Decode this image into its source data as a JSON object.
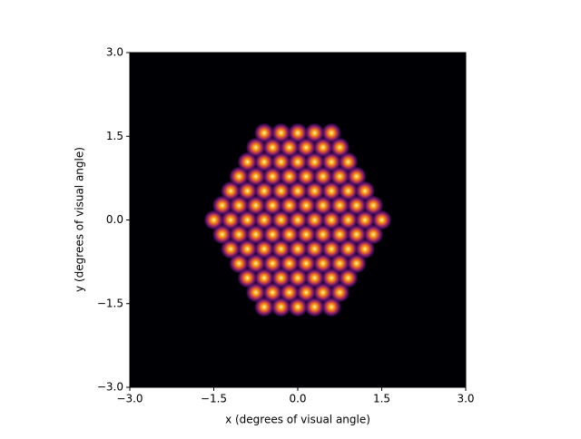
{
  "chart_data": {
    "type": "scatter",
    "xlabel": "x (degrees of visual angle)",
    "ylabel": "y (degrees of visual angle)",
    "xlim": [
      -3,
      3
    ],
    "ylim": [
      -3,
      3
    ],
    "xticks": [
      {
        "value": -3,
        "label": "−3.0"
      },
      {
        "value": -1.5,
        "label": "−1.5"
      },
      {
        "value": 0,
        "label": "0.0"
      },
      {
        "value": 1.5,
        "label": "1.5"
      },
      {
        "value": 3,
        "label": "3.0"
      }
    ],
    "yticks": [
      {
        "value": -3,
        "label": "−3.0"
      },
      {
        "value": -1.5,
        "label": "−1.5"
      },
      {
        "value": 0,
        "label": "0.0"
      },
      {
        "value": 1.5,
        "label": "1.5"
      },
      {
        "value": 3,
        "label": "3.0"
      }
    ],
    "background": "#000004",
    "color": "#fcffa4",
    "series": [
      {
        "x": [
          -0.6,
          -0.3,
          0,
          0.3,
          0.6,
          -0.75,
          -0.45,
          -0.15,
          0.15,
          0.45,
          0.75,
          -0.9,
          -0.6,
          -0.3,
          0,
          0.3,
          0.6,
          0.9,
          -1.05,
          -0.75,
          -0.45,
          -0.15,
          0.15,
          0.45,
          0.75,
          1.05,
          -1.2,
          -0.9,
          -0.6,
          -0.3,
          0,
          0.3,
          0.6,
          0.9,
          1.2,
          -1.35,
          -1.05,
          -0.75,
          -0.45,
          -0.15,
          0.15,
          0.45,
          0.75,
          1.05,
          1.35,
          -1.5,
          -1.2,
          -0.9,
          -0.6,
          -0.3,
          0,
          0.3,
          0.6,
          0.9,
          1.2,
          1.5,
          -1.35,
          -1.05,
          -0.75,
          -0.45,
          -0.15,
          0.15,
          0.45,
          0.75,
          1.05,
          1.35,
          -1.2,
          -0.9,
          -0.6,
          -0.3,
          0,
          0.3,
          0.6,
          0.9,
          1.2,
          -1.05,
          -0.75,
          -0.45,
          -0.15,
          0.15,
          0.45,
          0.75,
          1.05,
          -0.9,
          -0.6,
          -0.3,
          0,
          0.3,
          0.6,
          0.9,
          -0.75,
          -0.45,
          -0.15,
          0.15,
          0.45,
          0.75,
          -0.6,
          -0.3,
          0,
          0.3,
          0.6
        ],
        "y": [
          1.56,
          1.56,
          1.56,
          1.56,
          1.56,
          1.3,
          1.3,
          1.3,
          1.3,
          1.3,
          1.3,
          1.04,
          1.04,
          1.04,
          1.04,
          1.04,
          1.04,
          1.04,
          0.78,
          0.78,
          0.78,
          0.78,
          0.78,
          0.78,
          0.78,
          0.78,
          0.52,
          0.52,
          0.52,
          0.52,
          0.52,
          0.52,
          0.52,
          0.52,
          0.52,
          0.26,
          0.26,
          0.26,
          0.26,
          0.26,
          0.26,
          0.26,
          0.26,
          0.26,
          0.26,
          0,
          0,
          0,
          0,
          0,
          0,
          0,
          0,
          0,
          0,
          0,
          -0.26,
          -0.26,
          -0.26,
          -0.26,
          -0.26,
          -0.26,
          -0.26,
          -0.26,
          -0.26,
          -0.26,
          -0.52,
          -0.52,
          -0.52,
          -0.52,
          -0.52,
          -0.52,
          -0.52,
          -0.52,
          -0.52,
          -0.78,
          -0.78,
          -0.78,
          -0.78,
          -0.78,
          -0.78,
          -0.78,
          -0.78,
          -1.04,
          -1.04,
          -1.04,
          -1.04,
          -1.04,
          -1.04,
          -1.04,
          -1.3,
          -1.3,
          -1.3,
          -1.3,
          -1.3,
          -1.3,
          -1.56,
          -1.56,
          -1.56,
          -1.56,
          -1.56
        ]
      }
    ]
  }
}
